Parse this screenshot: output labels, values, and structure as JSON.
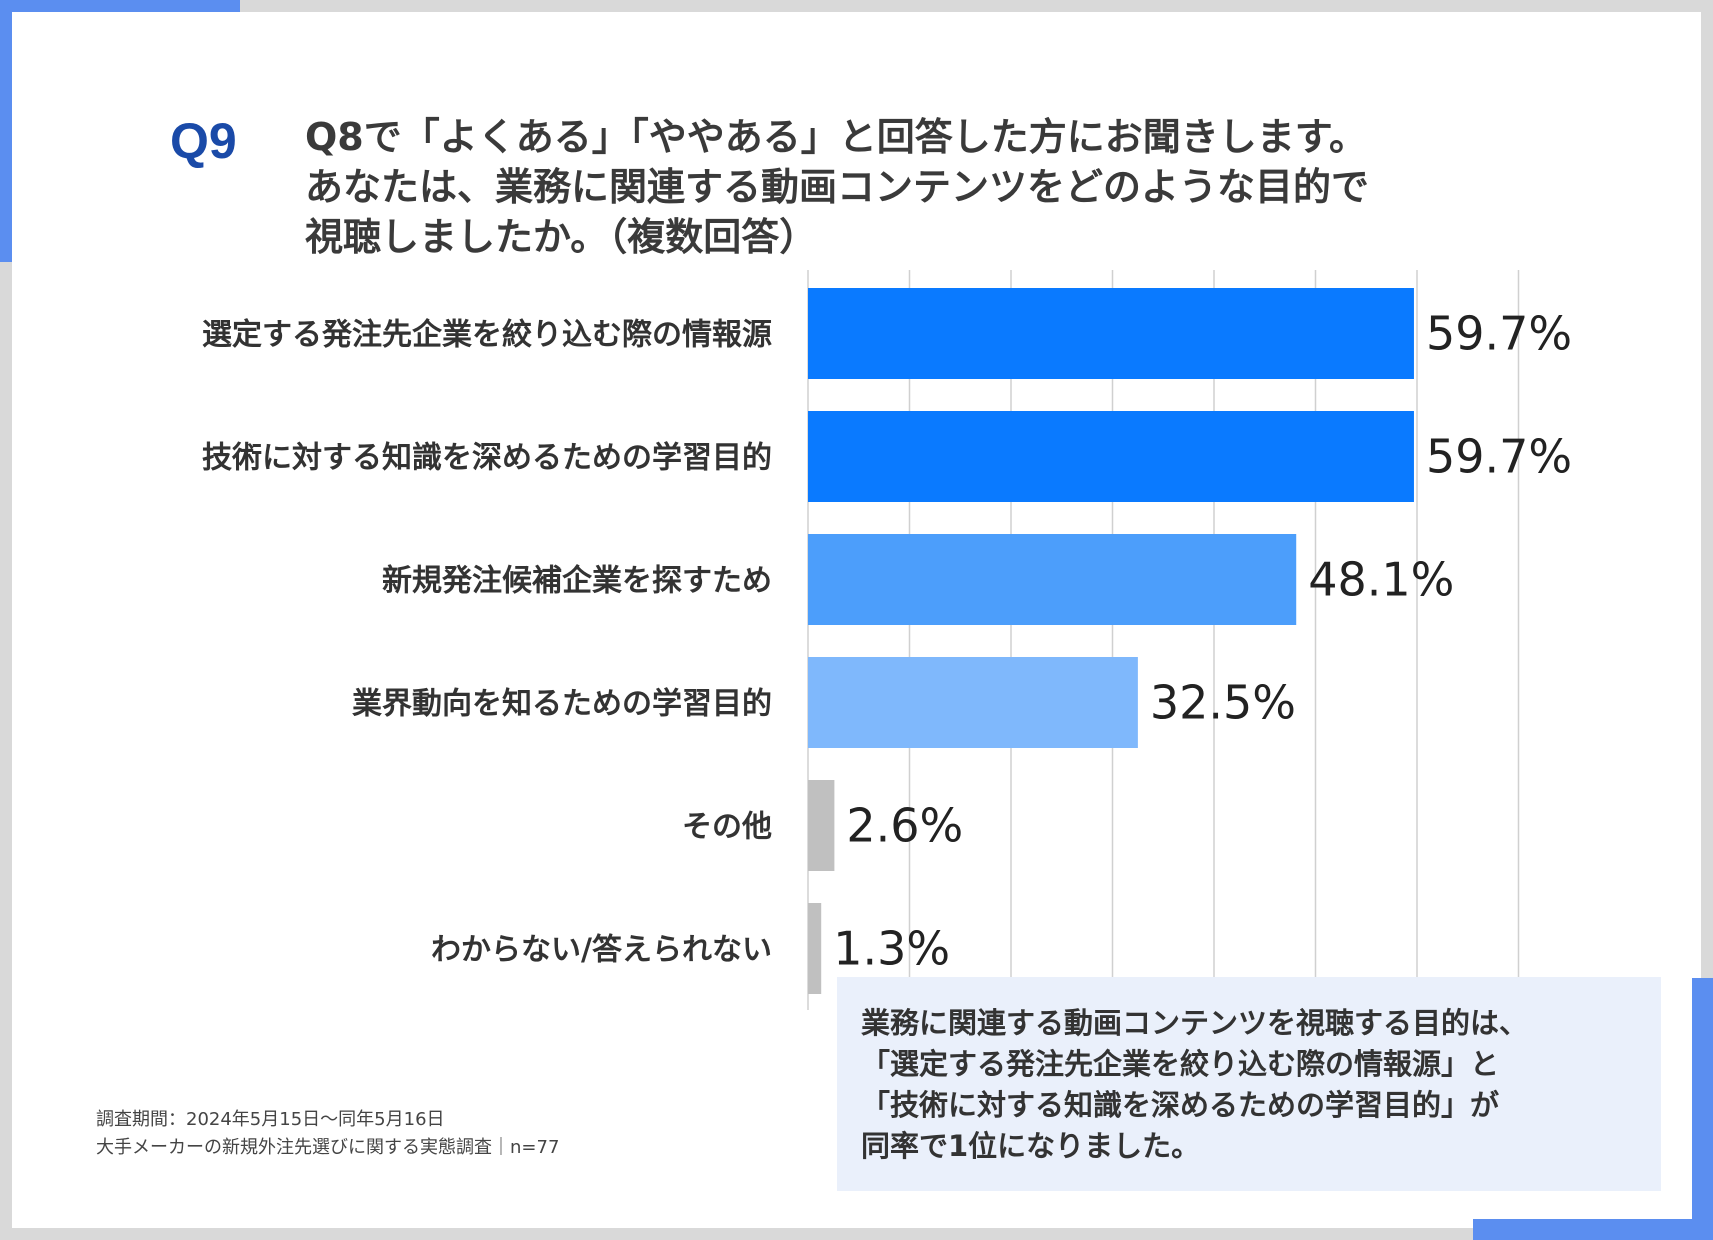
{
  "question": {
    "number": "Q9",
    "lines": [
      "Q8で「よくある」「ややある」と回答した方にお聞きします。",
      "あなたは、業務に関連する動画コンテンツをどのような目的で",
      "視聴しましたか。（複数回答）"
    ]
  },
  "chart_data": {
    "type": "bar",
    "orientation": "horizontal",
    "categories": [
      "選定する発注先企業を絞り込む際の情報源",
      "技術に対する知識を深めるための学習目的",
      "新規発注候補企業を探すため",
      "業界動向を知るための学習目的",
      "その他",
      "わからない/答えられない"
    ],
    "values": [
      59.7,
      59.7,
      48.1,
      32.5,
      2.6,
      1.3
    ],
    "value_labels": [
      "59.7%",
      "59.7%",
      "48.1%",
      "32.5%",
      "2.6%",
      "1.3%"
    ],
    "bar_colors": [
      "#0a7aff",
      "#0a7aff",
      "#4c9efb",
      "#7fb8fc",
      "#c0c0c0",
      "#c0c0c0"
    ],
    "xlim": [
      0,
      70
    ],
    "grid": true,
    "grid_step": 10
  },
  "source": {
    "line1": "調査期間：2024年5月15日～同年5月16日",
    "line2": "大手メーカーの新規外注先選びに関する実態調査｜n=77"
  },
  "summary": {
    "lines": [
      "業務に関連する動画コンテンツを視聴する目的は、",
      "「選定する発注先企業を絞り込む際の情報源」と",
      "「技術に対する知識を深めるための学習目的」が",
      "同率で1位になりました。"
    ]
  },
  "colors": {
    "accent": "#5b8ef0",
    "question_number": "#1a4aa8",
    "summary_bg": "#eaf0fb",
    "gridline": "#d0d0d0"
  }
}
